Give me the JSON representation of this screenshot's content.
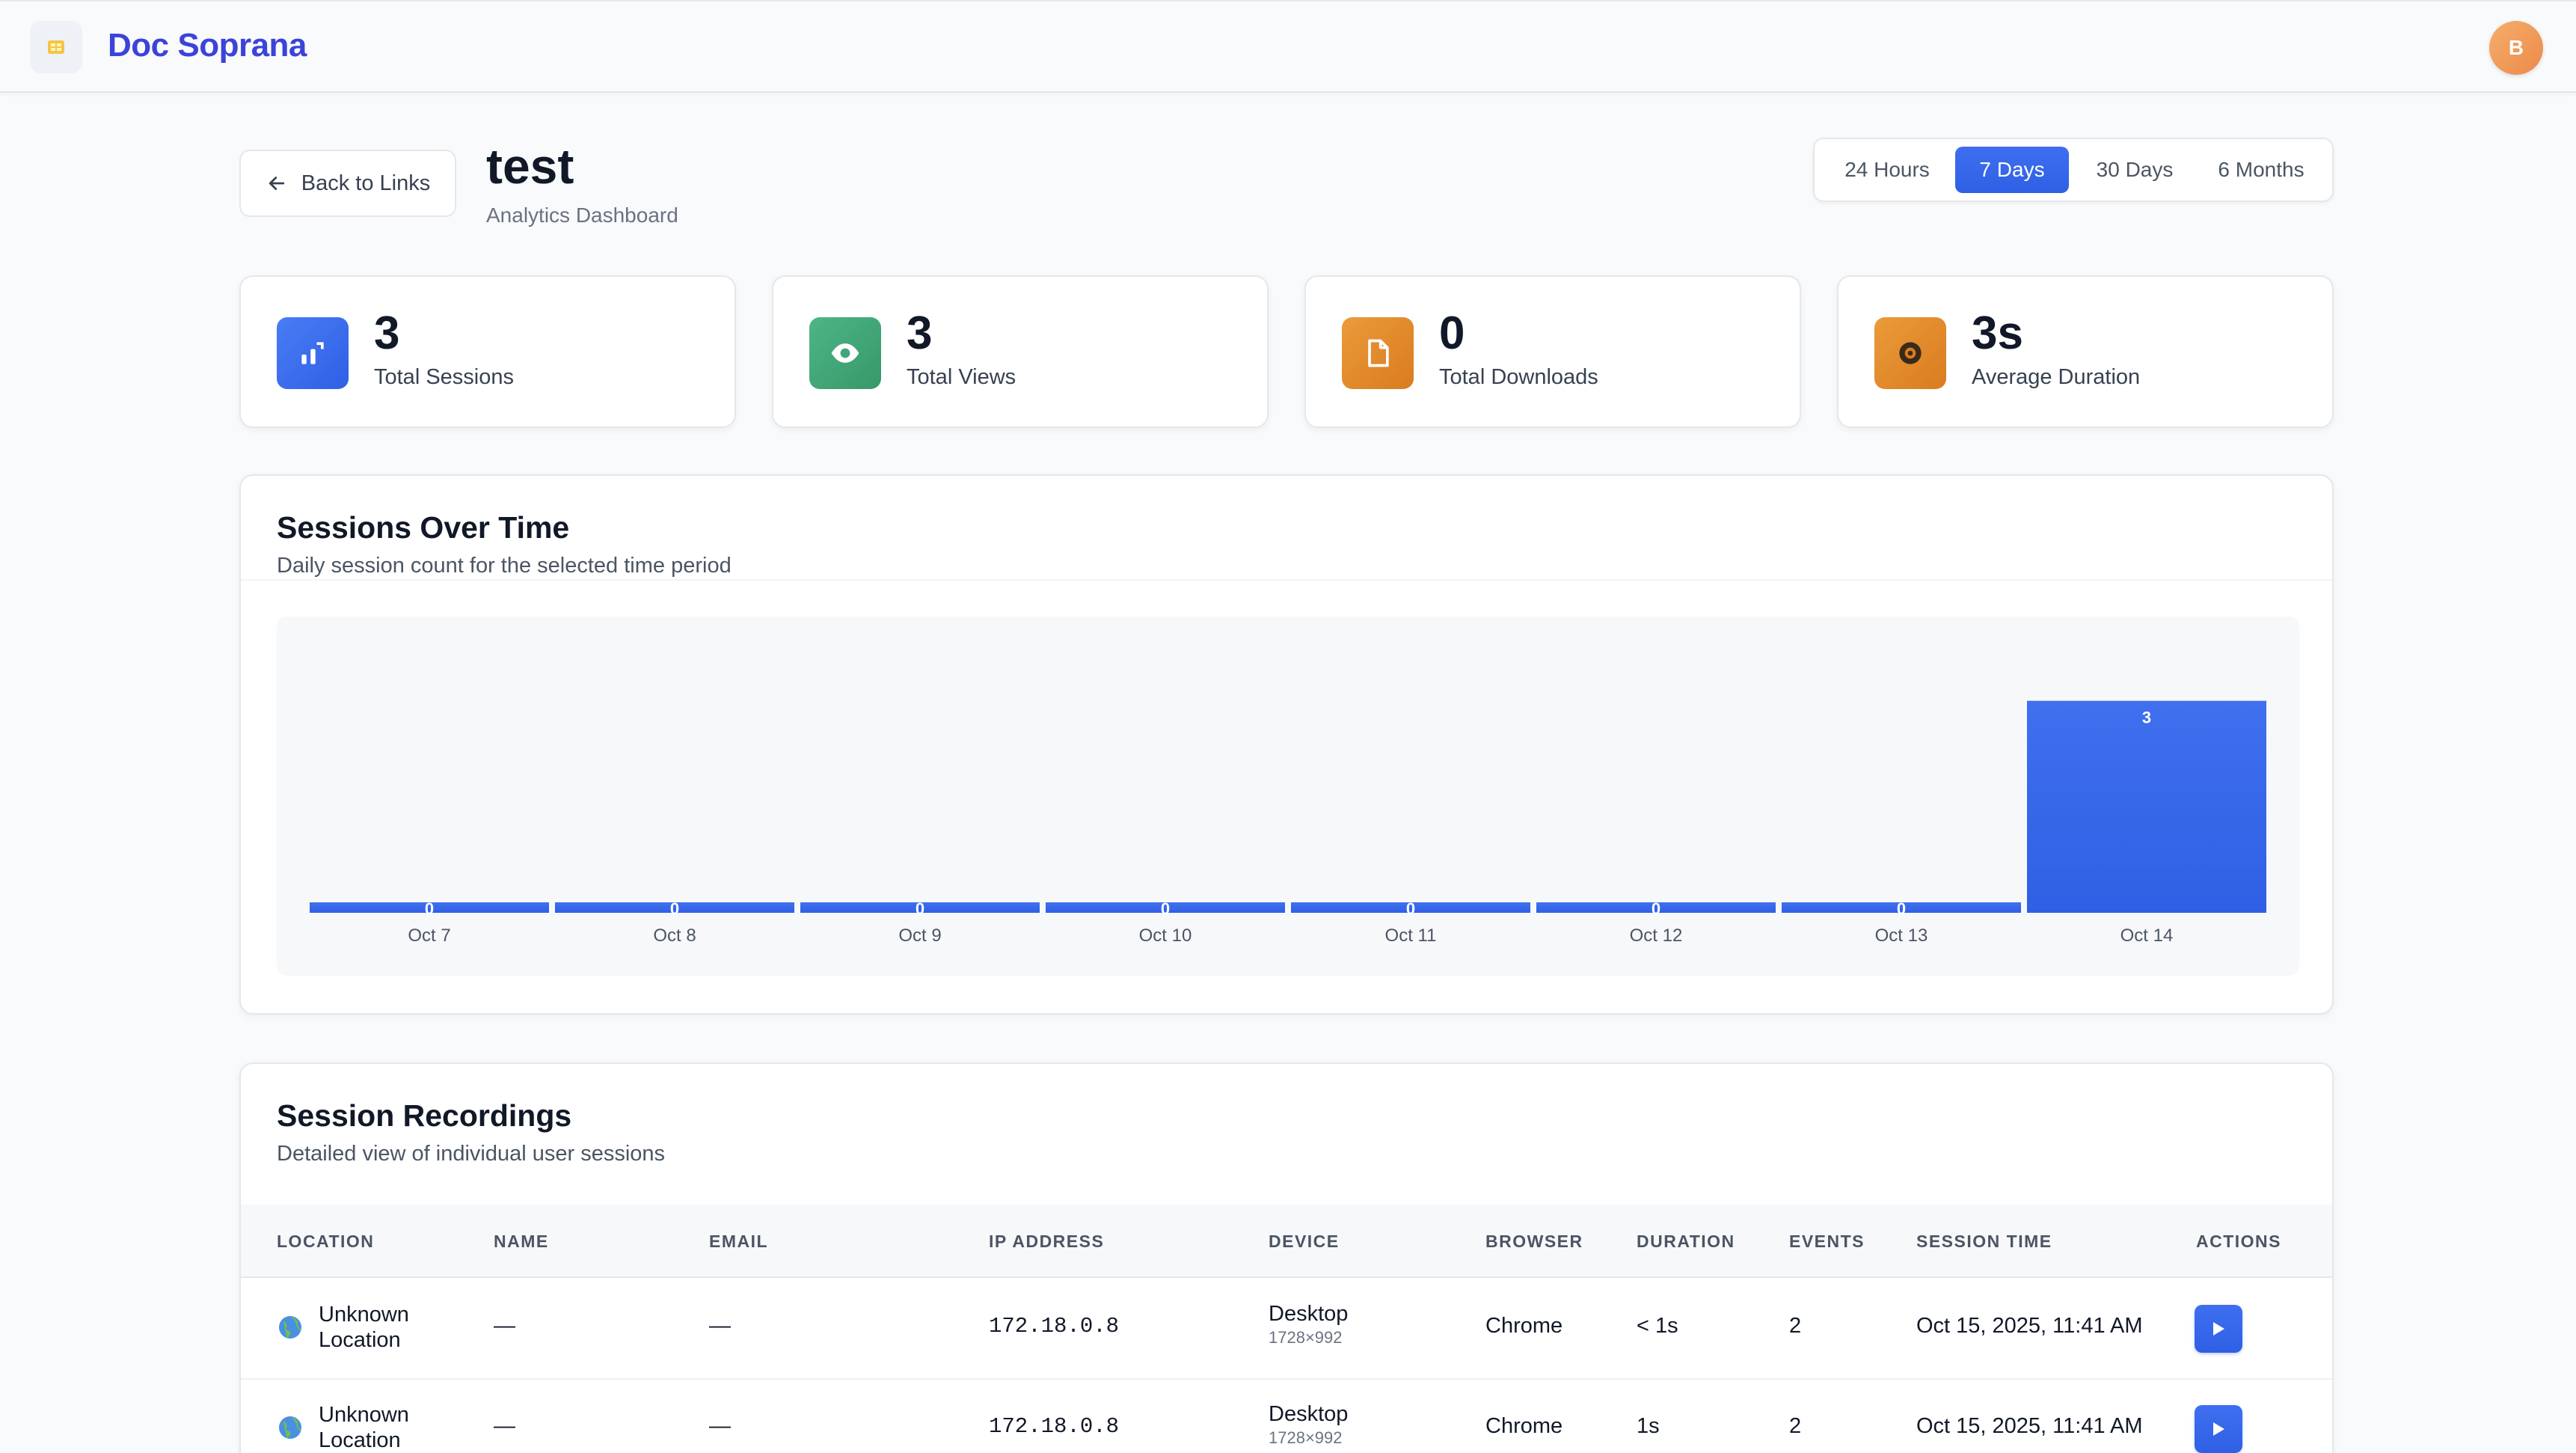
{
  "header": {
    "brand": "Doc Soprana",
    "avatar_initial": "B"
  },
  "page": {
    "back_label": "Back to Links",
    "title": "test",
    "subtitle": "Analytics Dashboard"
  },
  "time_ranges": [
    {
      "label": "24 Hours",
      "active": false
    },
    {
      "label": "7 Days",
      "active": true
    },
    {
      "label": "30 Days",
      "active": false
    },
    {
      "label": "6 Months",
      "active": false
    }
  ],
  "stats": [
    {
      "value": "3",
      "label": "Total Sessions",
      "icon": "chart-icon",
      "color": "#3b6cf0"
    },
    {
      "value": "3",
      "label": "Total Views",
      "icon": "eye-icon",
      "color": "#3fa57a"
    },
    {
      "value": "0",
      "label": "Total Downloads",
      "icon": "document-icon",
      "color": "#e08a2a"
    },
    {
      "value": "3s",
      "label": "Average Duration",
      "icon": "clock-icon",
      "color": "#e08a2a"
    }
  ],
  "sessions_chart": {
    "title": "Sessions Over Time",
    "subtitle": "Daily session count for the selected time period"
  },
  "chart_data": {
    "type": "bar",
    "categories": [
      "Oct 7",
      "Oct 8",
      "Oct 9",
      "Oct 10",
      "Oct 11",
      "Oct 12",
      "Oct 13",
      "Oct 14"
    ],
    "values": [
      0,
      0,
      0,
      0,
      0,
      0,
      0,
      3
    ],
    "title": "Sessions Over Time",
    "xlabel": "",
    "ylabel": "",
    "ylim": [
      0,
      3.6
    ],
    "bar_color": "#2f5fe4",
    "grid": false
  },
  "recordings": {
    "title": "Session Recordings",
    "subtitle": "Detailed view of individual user sessions",
    "columns": [
      "LOCATION",
      "NAME",
      "EMAIL",
      "IP ADDRESS",
      "DEVICE",
      "BROWSER",
      "DURATION",
      "EVENTS",
      "SESSION TIME",
      "ACTIONS"
    ],
    "rows": [
      {
        "location_line1": "Unknown",
        "location_line2": "Location",
        "name": "—",
        "email": "—",
        "ip": "172.18.0.8",
        "device": "Desktop",
        "resolution": "1728×992",
        "browser": "Chrome",
        "duration": "< 1s",
        "events": "2",
        "session_time": "Oct 15, 2025, 11:41 AM"
      },
      {
        "location_line1": "Unknown",
        "location_line2": "Location",
        "name": "—",
        "email": "—",
        "ip": "172.18.0.8",
        "device": "Desktop",
        "resolution": "1728×992",
        "browser": "Chrome",
        "duration": "1s",
        "events": "2",
        "session_time": "Oct 15, 2025, 11:41 AM"
      }
    ]
  }
}
